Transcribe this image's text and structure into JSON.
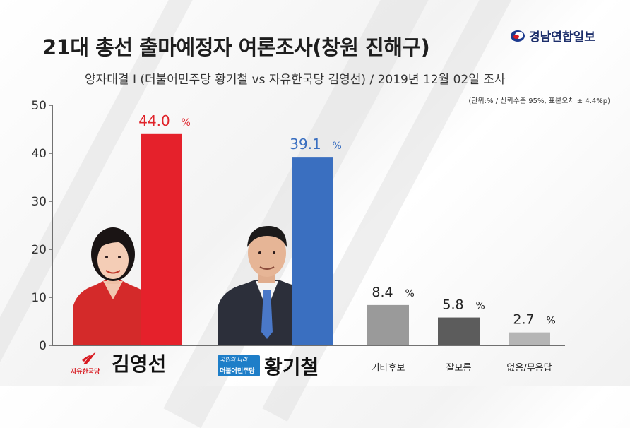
{
  "header": {
    "title": "21대 총선 출마예정자 여론조사(창원 진해구)",
    "logo_text": "경남연합일보",
    "subtitle": "양자대결 I (더불어민주당 황기철 vs 자유한국당 김영선)  /  2019년 12월 02일 조사",
    "note": "(단위:% / 신뢰수준 95%, 표본오차 ± 4.4%p)"
  },
  "candidates": [
    {
      "name": "김영선",
      "party": "자유한국당",
      "photo": "candidate-photo-female-red-jacket"
    },
    {
      "name": "황기철",
      "party": "더불어민주당",
      "party_slogan": "국민의 나라",
      "photo": "candidate-photo-male-blue-tie"
    }
  ],
  "colors": {
    "kim": "#e5212b",
    "hwang": "#3a6fc0",
    "other": "#9a9a9a",
    "dunno": "#5c5c5c",
    "none": "#b5b5b5",
    "kim_label": "#e0232a",
    "hwang_label": "#3a6fc0"
  },
  "chart_data": {
    "type": "bar",
    "categories": [
      "김영선",
      "황기철",
      "기타후보",
      "잘모름",
      "없음/무응답"
    ],
    "values": [
      44.0,
      39.1,
      8.4,
      5.8,
      2.7
    ],
    "value_labels": [
      "44.0",
      "39.1",
      "8.4",
      "5.8",
      "2.7"
    ],
    "unit": "%",
    "yticks": [
      0,
      10,
      20,
      30,
      40,
      50
    ],
    "ylim": [
      0,
      50
    ],
    "title": "21대 총선 출마예정자 여론조사(창원 진해구)",
    "xlabel": "",
    "ylabel": "",
    "grid": false,
    "legend": "none"
  }
}
